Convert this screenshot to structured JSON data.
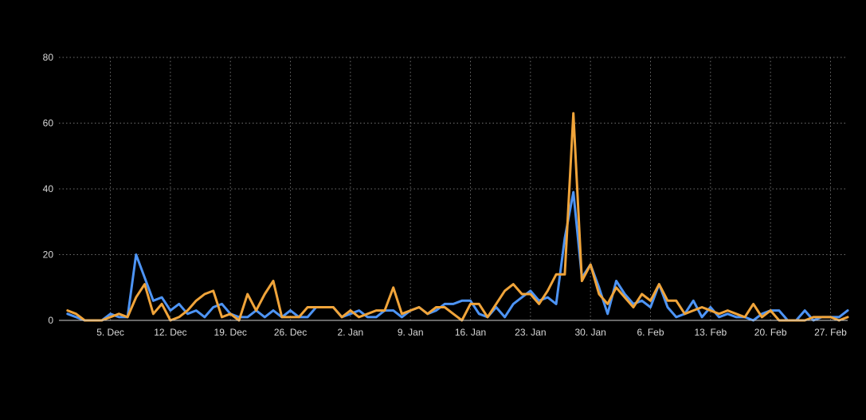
{
  "chart_data": {
    "type": "line",
    "title": "",
    "xlabel": "",
    "ylabel": "",
    "ylim": [
      0,
      80
    ],
    "yticks": [
      0,
      20,
      40,
      60,
      80
    ],
    "grid": true,
    "legend": "none",
    "x_range": [
      "2022-11-29",
      "2023-03-01"
    ],
    "x_ticks": [
      {
        "date": "2022-12-05",
        "label": "5. Dec"
      },
      {
        "date": "2022-12-12",
        "label": "12. Dec"
      },
      {
        "date": "2022-12-19",
        "label": "19. Dec"
      },
      {
        "date": "2022-12-26",
        "label": "26. Dec"
      },
      {
        "date": "2023-01-02",
        "label": "2. Jan"
      },
      {
        "date": "2023-01-09",
        "label": "9. Jan"
      },
      {
        "date": "2023-01-16",
        "label": "16. Jan"
      },
      {
        "date": "2023-01-23",
        "label": "23. Jan"
      },
      {
        "date": "2023-01-30",
        "label": "30. Jan"
      },
      {
        "date": "2023-02-06",
        "label": "6. Feb"
      },
      {
        "date": "2023-02-13",
        "label": "13. Feb"
      },
      {
        "date": "2023-02-20",
        "label": "20. Feb"
      },
      {
        "date": "2023-02-27",
        "label": "27. Feb"
      }
    ],
    "x": [
      "2022-11-30",
      "2022-12-01",
      "2022-12-02",
      "2022-12-03",
      "2022-12-04",
      "2022-12-05",
      "2022-12-06",
      "2022-12-07",
      "2022-12-08",
      "2022-12-09",
      "2022-12-10",
      "2022-12-11",
      "2022-12-12",
      "2022-12-13",
      "2022-12-14",
      "2022-12-15",
      "2022-12-16",
      "2022-12-17",
      "2022-12-18",
      "2022-12-19",
      "2022-12-20",
      "2022-12-21",
      "2022-12-22",
      "2022-12-23",
      "2022-12-24",
      "2022-12-25",
      "2022-12-26",
      "2022-12-27",
      "2022-12-28",
      "2022-12-29",
      "2022-12-30",
      "2022-12-31",
      "2023-01-01",
      "2023-01-02",
      "2023-01-03",
      "2023-01-04",
      "2023-01-05",
      "2023-01-06",
      "2023-01-07",
      "2023-01-08",
      "2023-01-09",
      "2023-01-10",
      "2023-01-11",
      "2023-01-12",
      "2023-01-13",
      "2023-01-14",
      "2023-01-15",
      "2023-01-16",
      "2023-01-17",
      "2023-01-18",
      "2023-01-19",
      "2023-01-20",
      "2023-01-21",
      "2023-01-22",
      "2023-01-23",
      "2023-01-24",
      "2023-01-25",
      "2023-01-26",
      "2023-01-27",
      "2023-01-28",
      "2023-01-29",
      "2023-01-30",
      "2023-01-31",
      "2023-02-01",
      "2023-02-02",
      "2023-02-03",
      "2023-02-04",
      "2023-02-05",
      "2023-02-06",
      "2023-02-07",
      "2023-02-08",
      "2023-02-09",
      "2023-02-10",
      "2023-02-11",
      "2023-02-12",
      "2023-02-13",
      "2023-02-14",
      "2023-02-15",
      "2023-02-16",
      "2023-02-17",
      "2023-02-18",
      "2023-02-19",
      "2023-02-20",
      "2023-02-21",
      "2023-02-22",
      "2023-02-23",
      "2023-02-24",
      "2023-02-25",
      "2023-02-26",
      "2023-02-27",
      "2023-02-28",
      "2023-03-01"
    ],
    "series": [
      {
        "color": "#4d94f5",
        "values": [
          2,
          1,
          0,
          0,
          0,
          2,
          1,
          1,
          20,
          13,
          6,
          7,
          3,
          5,
          2,
          3,
          1,
          4,
          5,
          2,
          1,
          1,
          3,
          1,
          3,
          1,
          3,
          1,
          1,
          4,
          4,
          4,
          1,
          2,
          3,
          1,
          1,
          3,
          3,
          1,
          3,
          4,
          2,
          3,
          5,
          5,
          6,
          6,
          2,
          1,
          4,
          1,
          5,
          7,
          9,
          6,
          7,
          5,
          25,
          39,
          13,
          17,
          10,
          2,
          12,
          8,
          5,
          6,
          4,
          11,
          4,
          1,
          2,
          6,
          1,
          4,
          1,
          2,
          1,
          1,
          0,
          2,
          3,
          3,
          0,
          0,
          3,
          0,
          1,
          1,
          1,
          3
        ]
      },
      {
        "color": "#f0a43a",
        "values": [
          3,
          2,
          0,
          0,
          0,
          1,
          2,
          1,
          7,
          11,
          2,
          5,
          0,
          1,
          3,
          6,
          8,
          9,
          1,
          2,
          0,
          8,
          3,
          8,
          12,
          1,
          1,
          1,
          4,
          4,
          4,
          4,
          1,
          3,
          1,
          2,
          3,
          3,
          10,
          2,
          3,
          4,
          2,
          4,
          4,
          2,
          0,
          5,
          5,
          1,
          5,
          9,
          11,
          8,
          8,
          5,
          9,
          14,
          14,
          63,
          12,
          17,
          8,
          5,
          10,
          7,
          4,
          8,
          6,
          11,
          6,
          6,
          2,
          3,
          4,
          3,
          2,
          3,
          2,
          1,
          5,
          1,
          3,
          0,
          0,
          0,
          0,
          1,
          1,
          1,
          0,
          1
        ]
      }
    ]
  }
}
